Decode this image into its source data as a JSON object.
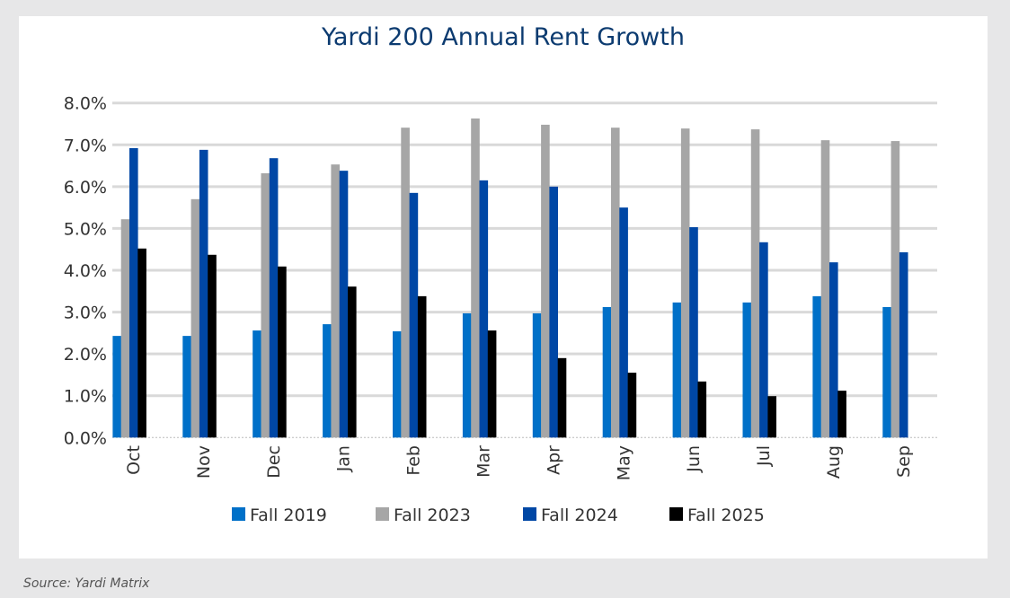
{
  "chart_data": {
    "type": "bar",
    "title": "Yardi 200 Annual Rent Growth",
    "categories": [
      "Oct",
      "Nov",
      "Dec",
      "Jan",
      "Feb",
      "Mar",
      "Apr",
      "May",
      "Jun",
      "Jul",
      "Aug",
      "Sep"
    ],
    "series": [
      {
        "name": "Fall 2019",
        "color": "#0070c8",
        "values": [
          2.43,
          2.43,
          2.56,
          2.71,
          2.54,
          2.97,
          2.97,
          3.12,
          3.23,
          3.23,
          3.38,
          3.12
        ]
      },
      {
        "name": "Fall 2023",
        "color": "#a6a6a6",
        "values": [
          5.22,
          5.7,
          6.32,
          6.53,
          7.41,
          7.63,
          7.48,
          7.41,
          7.39,
          7.37,
          7.11,
          7.09
        ]
      },
      {
        "name": "Fall 2024",
        "color": "#0047a5",
        "values": [
          6.92,
          6.88,
          6.68,
          6.38,
          5.85,
          6.15,
          6.0,
          5.5,
          5.03,
          4.67,
          4.19,
          4.43
        ]
      },
      {
        "name": "Fall 2025",
        "color": "#000000",
        "values": [
          4.52,
          4.37,
          4.09,
          3.61,
          3.38,
          2.56,
          1.9,
          1.55,
          1.34,
          0.99,
          1.12,
          null
        ]
      }
    ],
    "yticks": [
      "0.0%",
      "1.0%",
      "2.0%",
      "3.0%",
      "4.0%",
      "5.0%",
      "6.0%",
      "7.0%",
      "8.0%"
    ],
    "ylim": [
      0,
      8
    ],
    "yunit": "%",
    "grid": true,
    "legend": "bottom"
  },
  "source": "Source: Yardi Matrix"
}
